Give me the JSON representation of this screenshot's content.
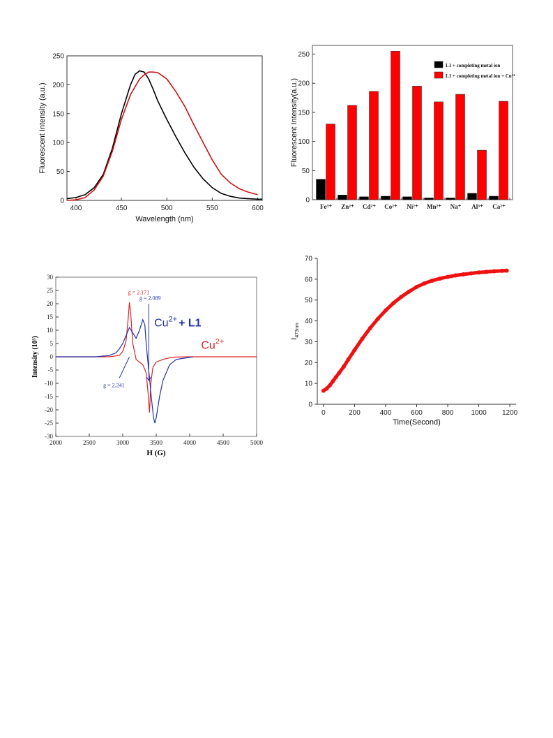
{
  "chart_data": [
    {
      "type": "line",
      "xlabel": "Wavelength (nm)",
      "ylabel": "Fluorescent Intensity (a.u.)",
      "xlim": [
        390,
        605
      ],
      "ylim": [
        0,
        250
      ],
      "xticks": [
        400,
        450,
        500,
        550,
        600
      ],
      "yticks": [
        0,
        50,
        100,
        150,
        200,
        250
      ],
      "grid": false,
      "series": [
        {
          "color": "#000000",
          "x": [
            390,
            400,
            410,
            420,
            430,
            440,
            450,
            460,
            465,
            470,
            475,
            480,
            485,
            490,
            500,
            510,
            520,
            530,
            540,
            550,
            560,
            570,
            580,
            590,
            600,
            605
          ],
          "y": [
            3,
            5,
            10,
            22,
            45,
            90,
            150,
            200,
            218,
            224,
            222,
            210,
            192,
            172,
            140,
            110,
            82,
            57,
            37,
            22,
            12,
            7,
            4,
            3,
            2,
            2
          ]
        },
        {
          "color": "#cc1111",
          "x": [
            390,
            400,
            410,
            420,
            430,
            440,
            450,
            460,
            470,
            475,
            480,
            485,
            490,
            500,
            510,
            520,
            530,
            540,
            550,
            560,
            570,
            580,
            590,
            600
          ],
          "y": [
            0,
            1,
            5,
            18,
            42,
            85,
            140,
            183,
            210,
            217,
            222,
            222,
            221,
            210,
            188,
            162,
            130,
            100,
            70,
            45,
            30,
            20,
            14,
            10
          ]
        }
      ]
    },
    {
      "type": "bar",
      "ylabel": "Fluorescent Intensity(a.u.)",
      "ylim": [
        0,
        265
      ],
      "yticks": [
        0,
        50,
        100,
        150,
        200,
        250
      ],
      "legend_position": "top-right",
      "categories": [
        "Fe³⁺",
        "Zn²⁺",
        "Cd²⁺",
        "Co²⁺",
        "Ni²⁺",
        "Mn²⁺",
        "Na⁺",
        "Al³⁺",
        "Ca²⁺"
      ],
      "series": [
        {
          "name": "L1 + completing metal ion",
          "color": "#000000",
          "values": [
            35,
            8,
            5,
            6,
            5,
            3,
            3,
            11,
            6
          ]
        },
        {
          "name": "L1 + completing metal ion + Cu²⁺",
          "color": "#ff0000",
          "values": [
            130,
            162,
            186,
            255,
            195,
            168,
            181,
            85,
            169
          ]
        }
      ]
    },
    {
      "type": "line",
      "xlabel": "H (G)",
      "ylabel": "Intensity (10⁵)",
      "xlim": [
        2000,
        5000
      ],
      "ylim": [
        -30,
        30
      ],
      "xticks": [
        2000,
        2500,
        3000,
        3500,
        4000,
        4500,
        5000
      ],
      "yticks": [
        -30,
        -25,
        -20,
        -15,
        -10,
        -5,
        0,
        5,
        10,
        15,
        20,
        25,
        30
      ],
      "grid": false,
      "series": [
        {
          "name": "Cu²⁺",
          "color": "#dd2222",
          "x": [
            2000,
            2800,
            2950,
            3000,
            3050,
            3080,
            3100,
            3120,
            3150,
            3200,
            3250,
            3300,
            3350,
            3380,
            3400,
            3420,
            3450,
            3500,
            3600,
            3700,
            3800,
            4000,
            5000
          ],
          "y": [
            0,
            0,
            0.5,
            2,
            6,
            14,
            20.5,
            16,
            5,
            -1,
            -2,
            -3,
            -6,
            -14,
            -21,
            -10,
            -4,
            -2,
            -1,
            -0.4,
            -0.1,
            0,
            0
          ]
        },
        {
          "name": "Cu²⁺+ L1",
          "color": "#2233aa",
          "x": [
            2000,
            2600,
            2800,
            2900,
            2950,
            3000,
            3050,
            3100,
            3150,
            3200,
            3250,
            3300,
            3330,
            3350,
            3380,
            3400,
            3430,
            3460,
            3480,
            3500,
            3550,
            3600,
            3700,
            3800,
            4050
          ],
          "y": [
            0,
            0,
            0.5,
            1.5,
            3,
            5,
            8,
            11,
            9,
            7,
            10,
            14,
            12,
            5,
            -3,
            -8,
            -16,
            -23,
            -25,
            -23,
            -15,
            -9,
            -3,
            -1,
            0
          ]
        }
      ],
      "annotations": [
        {
          "text": "g = 2.171",
          "color": "#dd2222"
        },
        {
          "text": "g = 2.089",
          "color": "#2233aa"
        },
        {
          "text": "g = 2.241",
          "color": "#2233aa"
        },
        {
          "text": "Cu",
          "sup": "2+",
          "suffix": "+ L1",
          "color": "#2233aa"
        },
        {
          "text": "Cu",
          "sup": "2+",
          "color": "#dd2222"
        }
      ]
    },
    {
      "type": "scatter",
      "xlabel": "Time(Second)",
      "ylabel": "I",
      "ylabel_sub": "473nm",
      "xlim": [
        -40,
        1240
      ],
      "ylim": [
        0,
        70
      ],
      "xticks": [
        0,
        200,
        400,
        600,
        800,
        1000,
        1200
      ],
      "yticks": [
        0,
        10,
        20,
        30,
        40,
        50,
        60,
        70
      ],
      "grid": false,
      "color": "#ee1111",
      "x": [
        0,
        20,
        40,
        60,
        80,
        100,
        130,
        160,
        200,
        250,
        300,
        350,
        400,
        450,
        500,
        550,
        600,
        650,
        700,
        750,
        800,
        850,
        900,
        950,
        1000,
        1050,
        1100,
        1150,
        1180
      ],
      "y": [
        6.5,
        7.5,
        9,
        11,
        13,
        15,
        18,
        21.5,
        26,
        31.5,
        36.5,
        41,
        45,
        48.5,
        51.5,
        54,
        56.3,
        58,
        59.3,
        60.3,
        61.1,
        61.8,
        62.3,
        62.8,
        63.2,
        63.5,
        63.8,
        64,
        64.1
      ]
    }
  ]
}
